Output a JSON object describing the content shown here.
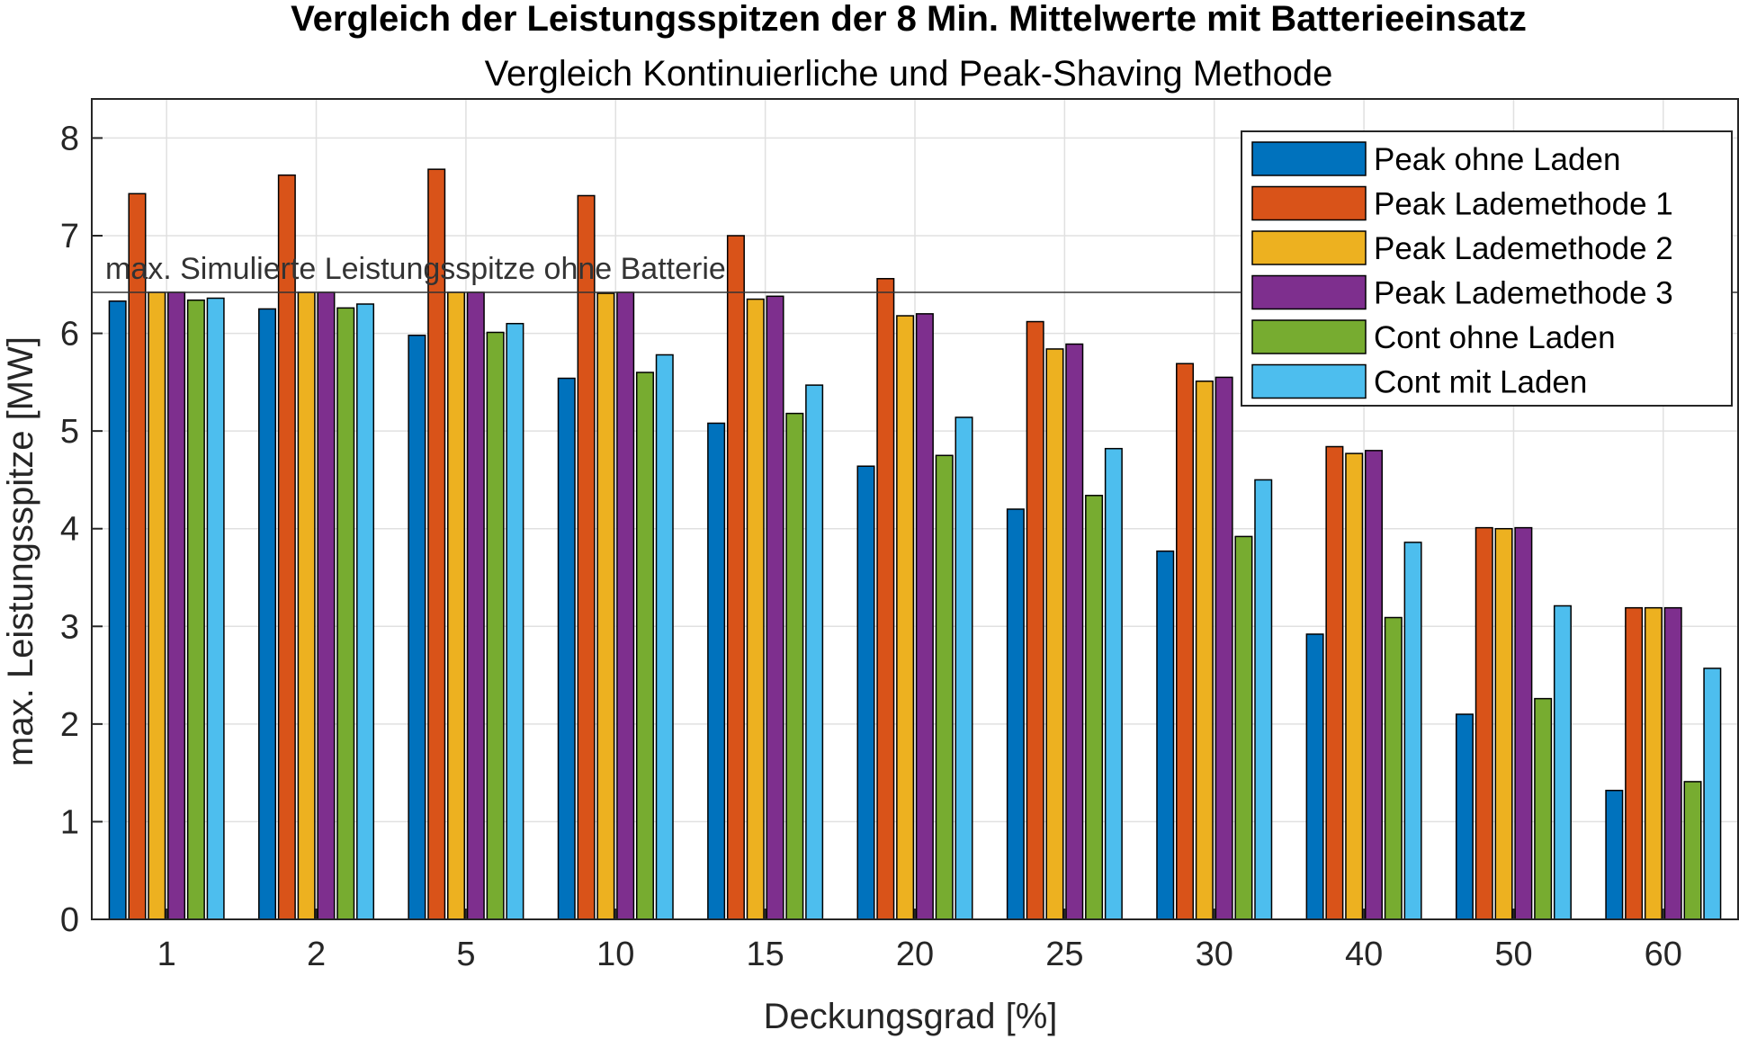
{
  "chart_data": {
    "type": "bar",
    "title": "Vergleich der Leistungsspitzen der 8 Min. Mittelwerte mit Batterieeinsatz",
    "subtitle": "Vergleich Kontinuierliche und Peak-Shaving Methode",
    "xlabel": "Deckungsgrad [%]",
    "ylabel": "max. Leistungsspitze [MW]",
    "ylim": [
      0,
      8.4
    ],
    "yticks": [
      0,
      1,
      2,
      3,
      4,
      5,
      6,
      7,
      8
    ],
    "grid": true,
    "legend_position": "top-right",
    "categories": [
      "1",
      "2",
      "5",
      "10",
      "15",
      "20",
      "25",
      "30",
      "40",
      "50",
      "60"
    ],
    "series": [
      {
        "name": "Peak ohne Laden",
        "color": "#0072BD",
        "values": [
          6.33,
          6.25,
          5.98,
          5.54,
          5.08,
          4.64,
          4.2,
          3.77,
          2.92,
          2.1,
          1.32
        ]
      },
      {
        "name": "Peak Lademethode 1",
        "color": "#D95319",
        "values": [
          7.43,
          7.62,
          7.68,
          7.41,
          7.0,
          6.56,
          6.12,
          5.69,
          4.84,
          4.01,
          3.19
        ]
      },
      {
        "name": "Peak Lademethode 2",
        "color": "#EDB120",
        "values": [
          6.42,
          6.42,
          6.42,
          6.41,
          6.35,
          6.18,
          5.84,
          5.51,
          4.77,
          4.0,
          3.19
        ]
      },
      {
        "name": "Peak Lademethode 3",
        "color": "#7E2F8E",
        "values": [
          6.42,
          6.42,
          6.42,
          6.42,
          6.38,
          6.2,
          5.89,
          5.55,
          4.8,
          4.01,
          3.19
        ]
      },
      {
        "name": "Cont ohne Laden",
        "color": "#77AC30",
        "values": [
          6.34,
          6.26,
          6.01,
          5.6,
          5.18,
          4.75,
          4.34,
          3.92,
          3.09,
          2.26,
          1.41
        ]
      },
      {
        "name": "Cont mit Laden",
        "color": "#4DBEEE",
        "values": [
          6.36,
          6.3,
          6.1,
          5.78,
          5.47,
          5.14,
          4.82,
          4.5,
          3.86,
          3.21,
          2.57
        ]
      }
    ],
    "reference_line": {
      "value": 6.42,
      "label": "max. Simulierte Leistungsspitze ohne Batterie"
    }
  }
}
